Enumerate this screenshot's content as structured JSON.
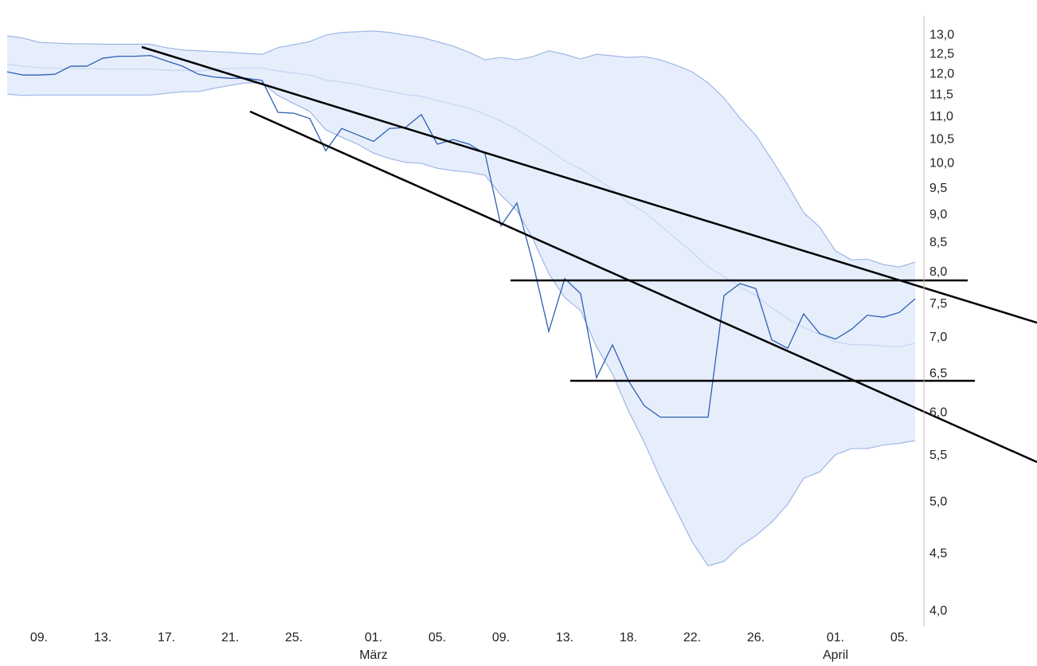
{
  "chart_data": {
    "type": "line",
    "log_scale": true,
    "grid": true,
    "ylim": [
      3.88,
      13.52
    ],
    "yticks": [
      {
        "value": 4,
        "label": "4,0"
      },
      {
        "value": 4.5,
        "label": "4,5"
      },
      {
        "value": 5,
        "label": "5,0"
      },
      {
        "value": 5.5,
        "label": "5,5"
      },
      {
        "value": 6,
        "label": "6,0"
      },
      {
        "value": 6.5,
        "label": "6,5"
      },
      {
        "value": 7,
        "label": "7,0"
      },
      {
        "value": 7.5,
        "label": "7,5"
      },
      {
        "value": 8,
        "label": "8,0"
      },
      {
        "value": 8.5,
        "label": "8,5"
      },
      {
        "value": 9,
        "label": "9,0"
      },
      {
        "value": 9.5,
        "label": "9,5"
      },
      {
        "value": 10,
        "label": "10,0"
      },
      {
        "value": 10.5,
        "label": "10,5"
      },
      {
        "value": 11,
        "label": "11,0"
      },
      {
        "value": 11.5,
        "label": "11,5"
      },
      {
        "value": 12,
        "label": "12,0"
      },
      {
        "value": 12.5,
        "label": "12,5"
      },
      {
        "value": 13,
        "label": "13,0"
      }
    ],
    "categories": [
      null,
      null,
      "09.",
      null,
      null,
      null,
      "13.",
      null,
      null,
      null,
      "17.",
      null,
      null,
      null,
      "21.",
      null,
      null,
      null,
      "25.",
      null,
      null,
      null,
      null,
      "01.",
      null,
      null,
      null,
      "05.",
      null,
      null,
      null,
      "09.",
      null,
      null,
      null,
      "13.",
      null,
      null,
      null,
      "18.",
      null,
      null,
      null,
      "22.",
      null,
      null,
      null,
      "26.",
      null,
      null,
      null,
      null,
      "01.",
      null,
      null,
      null,
      "05.",
      null
    ],
    "month_labels": [
      null,
      null,
      null,
      null,
      null,
      null,
      null,
      null,
      null,
      null,
      null,
      null,
      null,
      null,
      null,
      null,
      null,
      null,
      null,
      null,
      null,
      null,
      null,
      "März",
      null,
      null,
      null,
      null,
      null,
      null,
      null,
      null,
      null,
      null,
      null,
      null,
      null,
      null,
      null,
      null,
      null,
      null,
      null,
      null,
      null,
      null,
      null,
      null,
      null,
      null,
      null,
      null,
      "April",
      null,
      null,
      null,
      null,
      null
    ],
    "band": {
      "color": "#9db6e6",
      "fill": "#e6eefc",
      "middle_color": "#c5d5f2",
      "upper": [
        12.98,
        12.92,
        12.81,
        12.79,
        12.77,
        12.77,
        12.76,
        12.76,
        12.76,
        12.76,
        12.67,
        12.61,
        12.59,
        12.57,
        12.55,
        12.52,
        12.5,
        12.67,
        12.75,
        12.83,
        13.0,
        13.07,
        13.09,
        13.11,
        13.07,
        13.0,
        12.94,
        12.83,
        12.71,
        12.55,
        12.36,
        12.42,
        12.36,
        12.44,
        12.59,
        12.5,
        12.38,
        12.5,
        12.46,
        12.42,
        12.44,
        12.36,
        12.22,
        12.06,
        11.79,
        11.43,
        10.97,
        10.59,
        10.08,
        9.57,
        9.04,
        8.78,
        8.36,
        8.21,
        8.22,
        8.13,
        8.09,
        8.17
      ],
      "middle": [
        12.25,
        12.2,
        12.16,
        12.15,
        12.14,
        12.14,
        12.13,
        12.13,
        12.13,
        12.13,
        12.1,
        12.1,
        12.08,
        12.12,
        12.14,
        12.16,
        12.15,
        12.08,
        12.03,
        11.98,
        11.86,
        11.81,
        11.75,
        11.66,
        11.59,
        11.51,
        11.47,
        11.37,
        11.28,
        11.19,
        11.06,
        10.9,
        10.72,
        10.5,
        10.29,
        10.05,
        9.89,
        9.69,
        9.48,
        9.23,
        9.05,
        8.81,
        8.57,
        8.34,
        8.09,
        7.93,
        7.77,
        7.63,
        7.44,
        7.28,
        7.15,
        7.05,
        6.94,
        6.9,
        6.9,
        6.88,
        6.87,
        6.92
      ],
      "lower": [
        11.52,
        11.49,
        11.5,
        11.5,
        11.5,
        11.5,
        11.5,
        11.5,
        11.5,
        11.5,
        11.54,
        11.58,
        11.58,
        11.66,
        11.73,
        11.79,
        11.79,
        11.49,
        11.3,
        11.12,
        10.71,
        10.55,
        10.4,
        10.21,
        10.1,
        10.02,
        10.0,
        9.9,
        9.85,
        9.82,
        9.76,
        9.37,
        9.08,
        8.57,
        7.98,
        7.6,
        7.4,
        6.87,
        6.5,
        6.03,
        5.65,
        5.25,
        4.92,
        4.61,
        4.39,
        4.43,
        4.57,
        4.67,
        4.8,
        4.98,
        5.25,
        5.32,
        5.51,
        5.58,
        5.58,
        5.62,
        5.64,
        5.67
      ]
    },
    "series": [
      {
        "color": "#2f5fb3",
        "values": [
          12.06,
          11.98,
          11.98,
          12.0,
          12.2,
          12.2,
          12.4,
          12.45,
          12.45,
          12.47,
          12.33,
          12.2,
          12.0,
          11.93,
          11.9,
          11.9,
          11.85,
          11.1,
          11.08,
          10.96,
          10.26,
          10.74,
          10.6,
          10.46,
          10.74,
          10.76,
          11.05,
          10.4,
          10.5,
          10.4,
          10.2,
          8.8,
          9.22,
          8.16,
          7.09,
          7.9,
          7.66,
          6.45,
          6.9,
          6.41,
          6.09,
          5.95,
          5.95,
          5.95,
          5.95,
          7.63,
          7.82,
          7.74,
          6.97,
          6.85,
          7.35,
          7.06,
          6.98,
          7.12,
          7.33,
          7.3,
          7.37,
          7.58
        ]
      }
    ]
  }
}
